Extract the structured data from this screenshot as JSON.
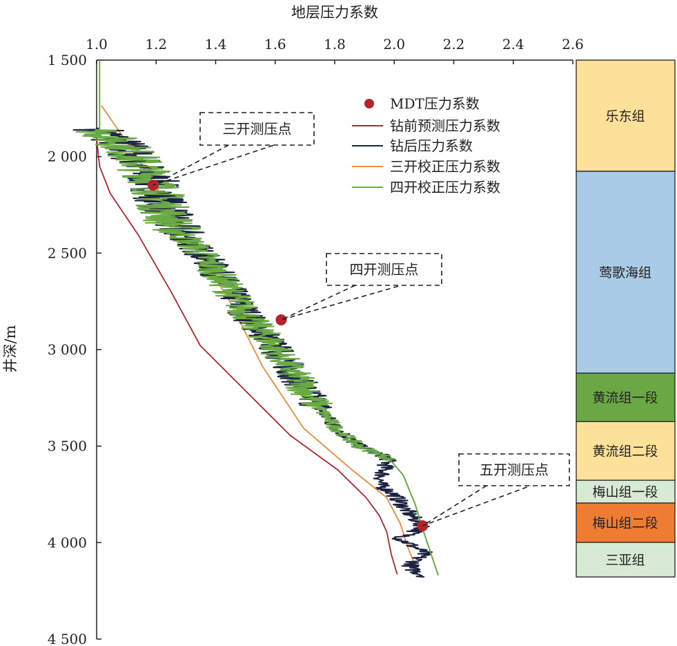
{
  "chart_data": {
    "type": "line",
    "title": "",
    "xlabel": "地层压力系数",
    "ylabel": "井深/m",
    "xlim": [
      1.0,
      2.6
    ],
    "ylim": [
      1500,
      4500
    ],
    "y_inverted": true,
    "x_ticks": [
      "1.0",
      "1.2",
      "1.4",
      "1.6",
      "1.8",
      "2.0",
      "2.2",
      "2.4",
      "2.6"
    ],
    "y_ticks": [
      "1 500",
      "2 000",
      "2 500",
      "3 000",
      "3 500",
      "4 000",
      "4 500"
    ],
    "x_axis_position": "top",
    "grid": false,
    "legend_position": "top-center",
    "series": [
      {
        "name": "MDT压力系数",
        "kind": "scatter",
        "color": "#b5242a",
        "points": [
          [
            1.19,
            2148
          ],
          [
            1.62,
            2846
          ],
          [
            2.095,
            3913
          ]
        ]
      },
      {
        "name": "钻前预测压力系数",
        "kind": "line",
        "color": "#b5242a",
        "points": [
          [
            1.0,
            1905
          ],
          [
            1.01,
            2050
          ],
          [
            1.046,
            2191
          ],
          [
            1.14,
            2406
          ],
          [
            1.25,
            2700
          ],
          [
            1.348,
            2979
          ],
          [
            1.487,
            3193
          ],
          [
            1.65,
            3444
          ],
          [
            1.81,
            3623
          ],
          [
            1.905,
            3766
          ],
          [
            1.95,
            3860
          ],
          [
            1.975,
            3945
          ],
          [
            1.99,
            4060
          ],
          [
            2.01,
            4165
          ]
        ]
      },
      {
        "name": "钻后压力系数",
        "kind": "line",
        "color": "#1c2340",
        "noisy_until_depth": 4180,
        "points": [
          [
            1.0,
            1850
          ],
          [
            1.1,
            1950
          ],
          [
            1.15,
            2050
          ],
          [
            1.2,
            2150
          ],
          [
            1.22,
            2250
          ],
          [
            1.25,
            2350
          ],
          [
            1.32,
            2450
          ],
          [
            1.38,
            2550
          ],
          [
            1.45,
            2700
          ],
          [
            1.52,
            2850
          ],
          [
            1.58,
            2950
          ],
          [
            1.65,
            3100
          ],
          [
            1.72,
            3250
          ],
          [
            1.8,
            3400
          ],
          [
            1.88,
            3500
          ],
          [
            1.98,
            3560
          ],
          [
            1.95,
            3700
          ],
          [
            2.0,
            3750
          ],
          [
            2.05,
            3850
          ],
          [
            2.1,
            3920
          ],
          [
            2.02,
            3980
          ],
          [
            2.1,
            4050
          ],
          [
            2.05,
            4130
          ],
          [
            2.11,
            4180
          ]
        ]
      },
      {
        "name": "三开校正压力系数",
        "kind": "line",
        "color": "#ec8a3a",
        "points": [
          [
            1.016,
            1736
          ],
          [
            1.14,
            2012
          ],
          [
            1.3,
            2406
          ],
          [
            1.44,
            2728
          ],
          [
            1.557,
            3086
          ],
          [
            1.696,
            3408
          ],
          [
            1.858,
            3623
          ],
          [
            1.974,
            3766
          ],
          [
            2.02,
            3900
          ],
          [
            2.044,
            4017
          ],
          [
            2.079,
            4153
          ]
        ]
      },
      {
        "name": "四开校正压力系数",
        "kind": "line",
        "color": "#6aaa45",
        "noisy_until_depth": 3570,
        "points": [
          [
            1.01,
            1500
          ],
          [
            1.01,
            1870
          ],
          [
            1.1,
            1950
          ],
          [
            1.15,
            2050
          ],
          [
            1.2,
            2150
          ],
          [
            1.22,
            2250
          ],
          [
            1.25,
            2350
          ],
          [
            1.32,
            2450
          ],
          [
            1.38,
            2550
          ],
          [
            1.45,
            2700
          ],
          [
            1.52,
            2850
          ],
          [
            1.58,
            2950
          ],
          [
            1.65,
            3100
          ],
          [
            1.72,
            3250
          ],
          [
            1.8,
            3400
          ],
          [
            1.88,
            3500
          ],
          [
            1.98,
            3560
          ],
          [
            2.03,
            3650
          ],
          [
            2.07,
            3800
          ],
          [
            2.1,
            3950
          ],
          [
            2.148,
            4170
          ]
        ]
      }
    ],
    "annotations": [
      {
        "text": "三开测压点",
        "target": [
          1.19,
          2148
        ]
      },
      {
        "text": "四开测压点",
        "target": [
          1.62,
          2846
        ]
      },
      {
        "text": "五开测压点",
        "target": [
          2.095,
          3913
        ]
      }
    ],
    "formations": [
      {
        "name": "乐东组",
        "top": 1500,
        "bottom": 2076,
        "color": "#fde199"
      },
      {
        "name": "莺歌海组",
        "top": 2076,
        "bottom": 3122,
        "color": "#a9cbe6"
      },
      {
        "name": "黄流组一段",
        "top": 3122,
        "bottom": 3373,
        "color": "#6aa845"
      },
      {
        "name": "黄流组二段",
        "top": 3373,
        "bottom": 3677,
        "color": "#fde199"
      },
      {
        "name": "梅山组一段",
        "top": 3677,
        "bottom": 3795,
        "color": "#d7ead3"
      },
      {
        "name": "梅山组二段",
        "top": 3795,
        "bottom": 3999,
        "color": "#ef7c33"
      },
      {
        "name": "三亚组",
        "top": 3999,
        "bottom": 4178,
        "color": "#d7ead3"
      }
    ]
  }
}
